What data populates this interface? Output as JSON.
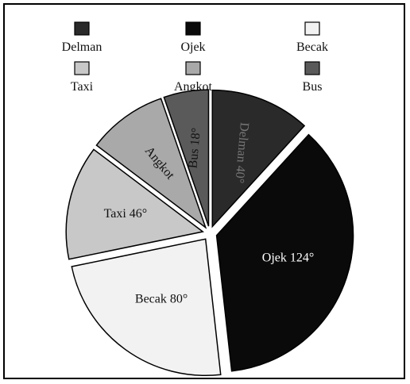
{
  "chart_data": {
    "type": "pie",
    "unit": "degrees",
    "legend_placement": "top",
    "slices": [
      {
        "name": "Delman",
        "value": 40,
        "label": "Delman 40°",
        "color": "#2a2a2a",
        "label_color": "#777777"
      },
      {
        "name": "Ojek",
        "value": 124,
        "label": "Ojek 124°",
        "color": "#0a0a0a",
        "label_color": "#ffffff"
      },
      {
        "name": "Becak",
        "value": 80,
        "label": "Becak 80°",
        "color": "#f2f2f2",
        "label_color": "#111111"
      },
      {
        "name": "Taxi",
        "value": 46,
        "label": "Taxi 46°",
        "color": "#c8c8c8",
        "label_color": "#111111"
      },
      {
        "name": "Angkot",
        "value": 32,
        "label": "Angkot",
        "color": "#a9a9a9",
        "label_color": "#111111"
      },
      {
        "name": "Bus",
        "value": 18,
        "label": "Bus 18°",
        "color": "#5a5a5a",
        "label_color": "#111111"
      }
    ]
  }
}
